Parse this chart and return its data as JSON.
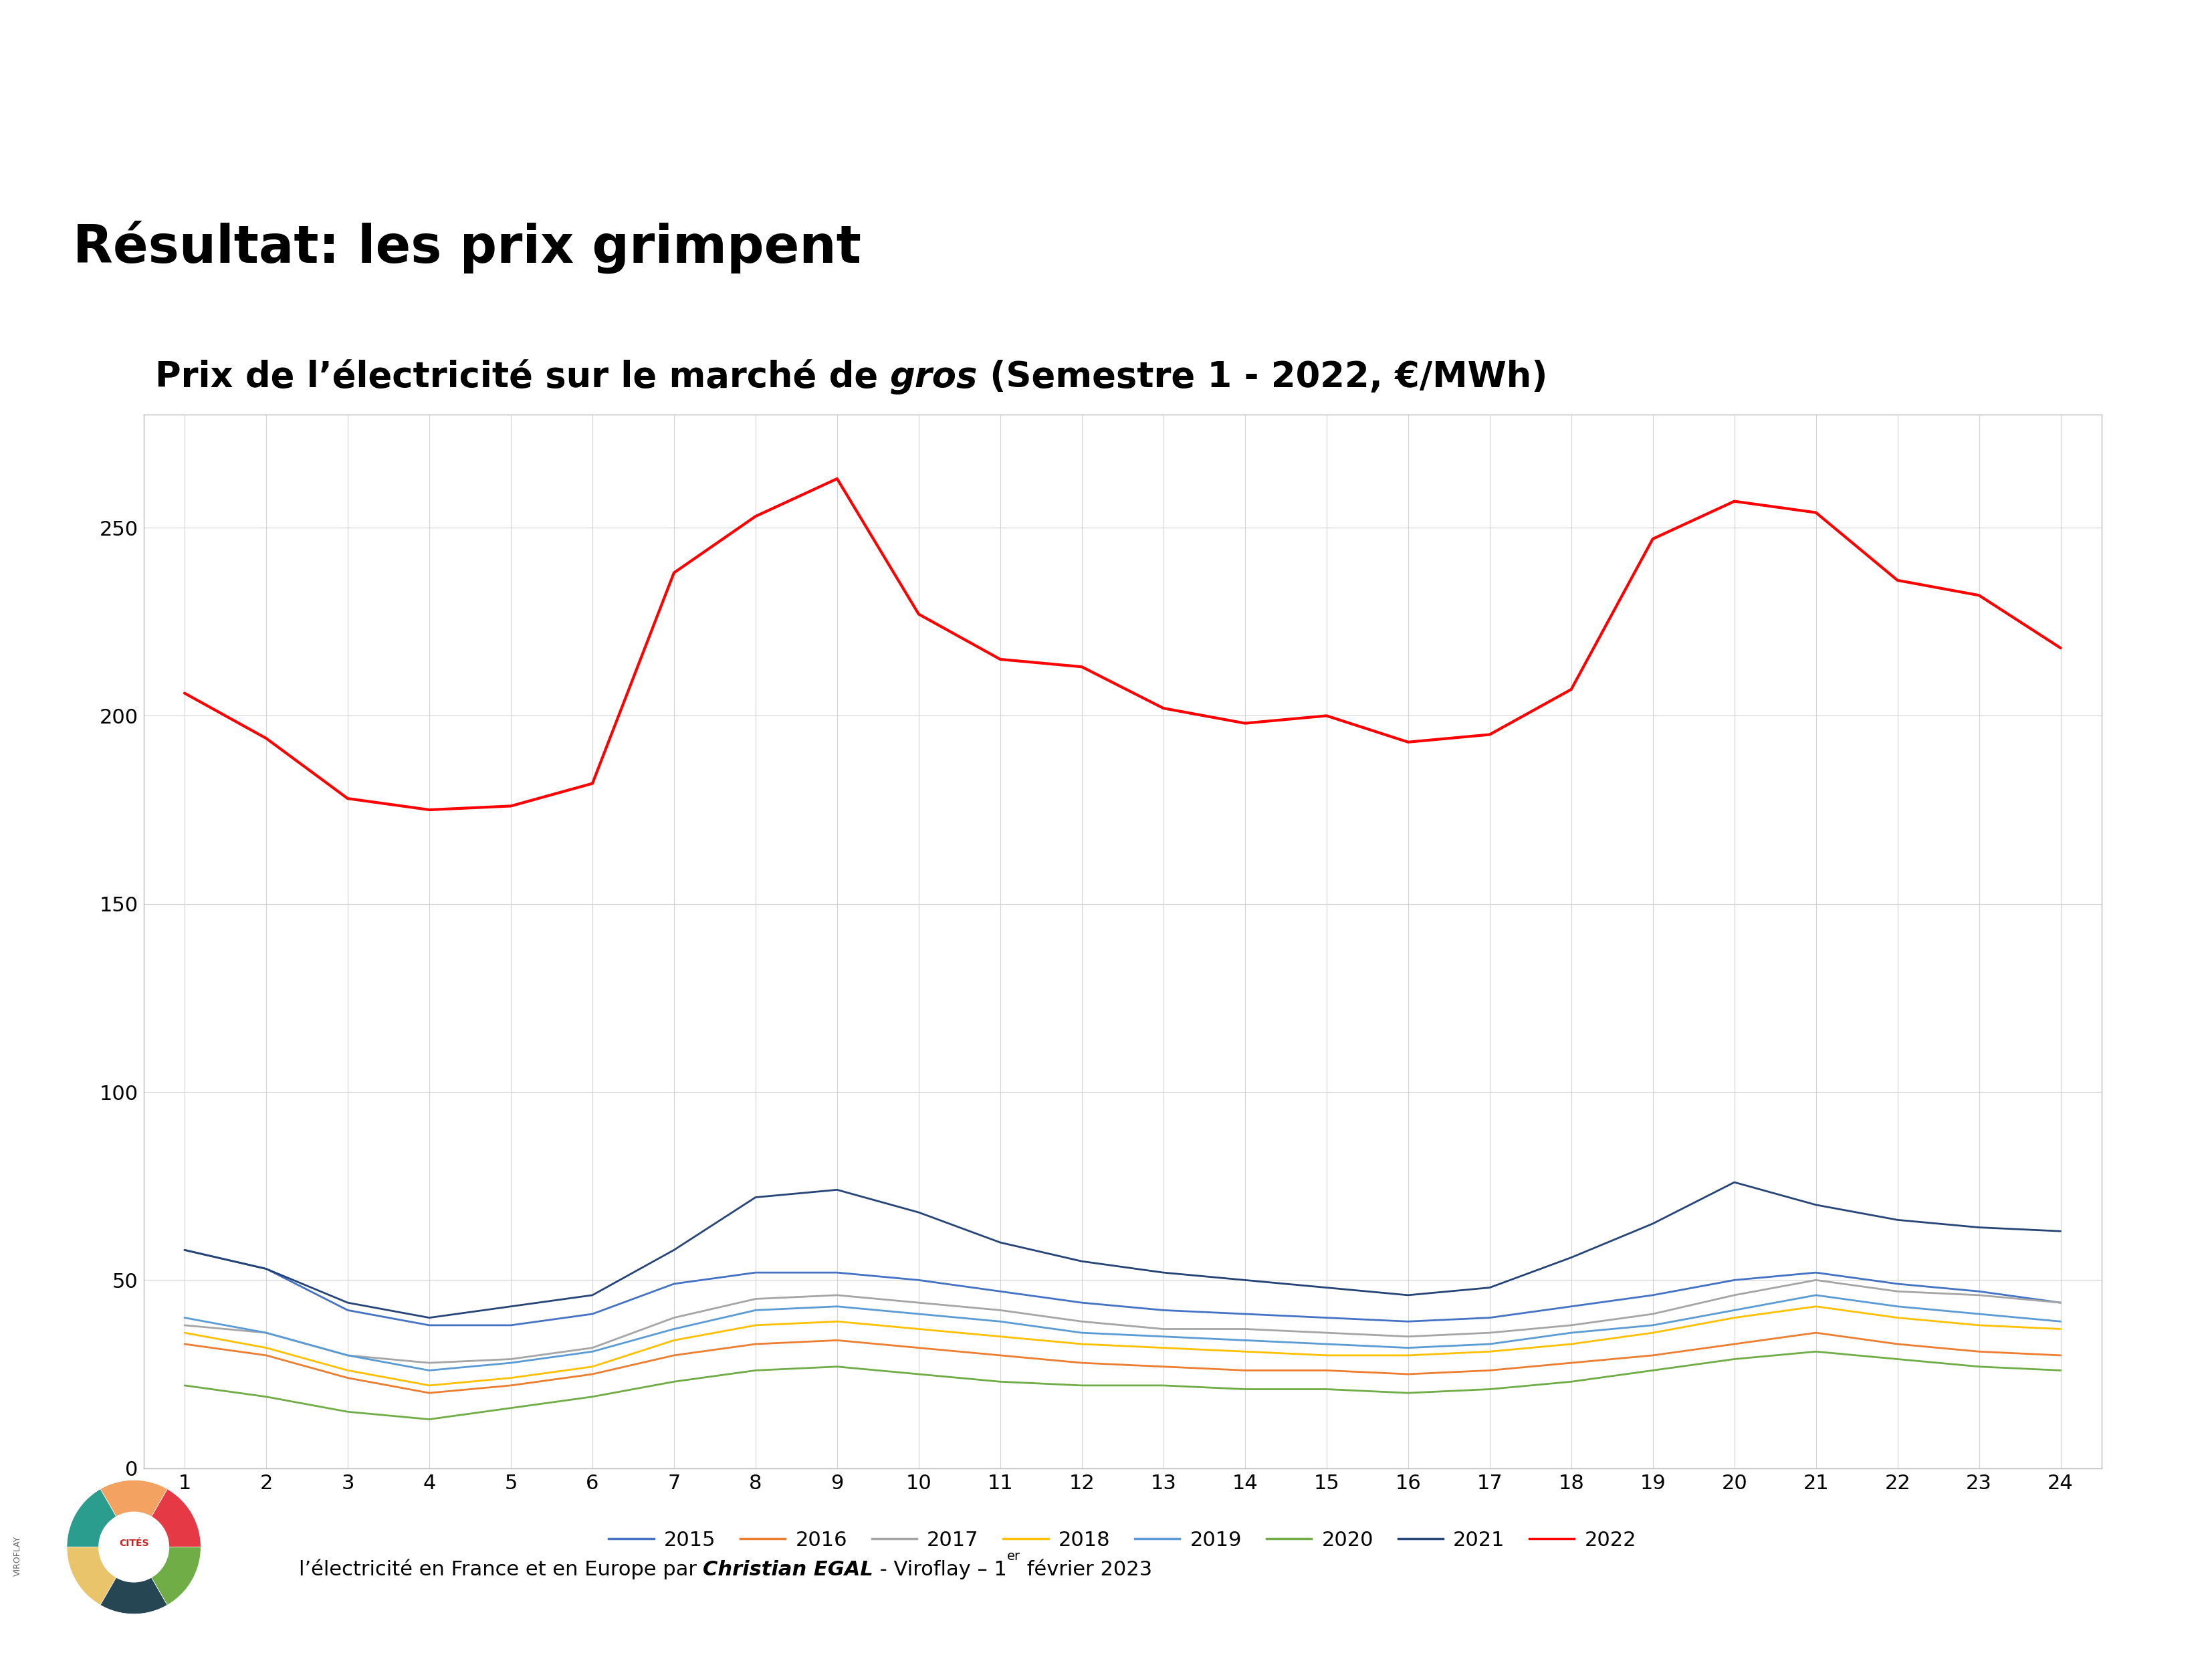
{
  "title_main": "Résultat: les prix grimpent",
  "x_labels": [
    "1",
    "2",
    "3",
    "4",
    "5",
    "6",
    "7",
    "8",
    "9",
    "10",
    "11",
    "12",
    "13",
    "14",
    "15",
    "16",
    "17",
    "18",
    "19",
    "20",
    "21",
    "22",
    "23",
    "24"
  ],
  "y_ticks": [
    0,
    50,
    100,
    150,
    200,
    250
  ],
  "series": {
    "2015": {
      "color": "#4472C4",
      "values": [
        58,
        53,
        42,
        38,
        38,
        41,
        49,
        52,
        52,
        50,
        47,
        44,
        42,
        41,
        40,
        39,
        40,
        43,
        46,
        50,
        52,
        49,
        47,
        44
      ]
    },
    "2016": {
      "color": "#ED7D31",
      "values": [
        33,
        30,
        24,
        20,
        22,
        25,
        30,
        33,
        34,
        32,
        30,
        28,
        27,
        26,
        26,
        25,
        26,
        28,
        30,
        33,
        36,
        33,
        31,
        30
      ]
    },
    "2017": {
      "color": "#A5A5A5",
      "values": [
        38,
        36,
        30,
        28,
        29,
        32,
        40,
        45,
        46,
        44,
        42,
        39,
        37,
        37,
        36,
        35,
        36,
        38,
        41,
        46,
        50,
        47,
        46,
        44
      ]
    },
    "2018": {
      "color": "#FFC000",
      "values": [
        36,
        32,
        26,
        22,
        24,
        27,
        34,
        38,
        39,
        37,
        35,
        33,
        32,
        31,
        30,
        30,
        31,
        33,
        36,
        40,
        43,
        40,
        38,
        37
      ]
    },
    "2019": {
      "color": "#5B9BD5",
      "values": [
        40,
        36,
        30,
        26,
        28,
        31,
        37,
        42,
        43,
        41,
        39,
        36,
        35,
        34,
        33,
        32,
        33,
        36,
        38,
        42,
        46,
        43,
        41,
        39
      ]
    },
    "2020": {
      "color": "#70AD47",
      "values": [
        22,
        19,
        15,
        13,
        16,
        19,
        23,
        26,
        27,
        25,
        23,
        22,
        22,
        21,
        21,
        20,
        21,
        23,
        26,
        29,
        31,
        29,
        27,
        26
      ]
    },
    "2021": {
      "color": "#264478",
      "values": [
        58,
        53,
        44,
        40,
        43,
        46,
        58,
        72,
        74,
        68,
        60,
        55,
        52,
        50,
        48,
        46,
        48,
        56,
        65,
        76,
        70,
        66,
        64,
        63
      ]
    },
    "2022": {
      "color": "#FF0000",
      "values": [
        206,
        194,
        178,
        175,
        176,
        182,
        238,
        253,
        263,
        227,
        215,
        213,
        202,
        198,
        200,
        193,
        195,
        207,
        247,
        257,
        254,
        236,
        232,
        218
      ]
    }
  },
  "background_color": "#FFFFFF",
  "grid_color": "#D3D3D3",
  "ylim": [
    0,
    280
  ],
  "border_color": "#BBBBBB"
}
